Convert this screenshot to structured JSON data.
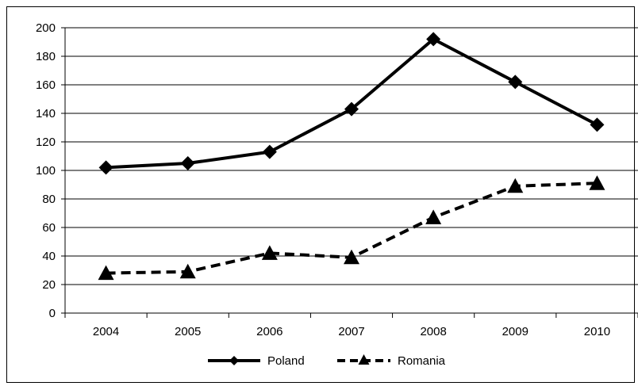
{
  "chart_data": {
    "type": "line",
    "x": [
      "2004",
      "2005",
      "2006",
      "2007",
      "2008",
      "2009",
      "2010"
    ],
    "ylim": [
      0,
      200
    ],
    "yticks": [
      0,
      20,
      40,
      60,
      80,
      100,
      120,
      140,
      160,
      180,
      200
    ],
    "grid": true,
    "legend_position": "bottom",
    "series": [
      {
        "name": "Poland",
        "values": [
          102,
          105,
          113,
          143,
          192,
          162,
          132
        ],
        "marker": "diamond",
        "line": "solid",
        "color": "#000000"
      },
      {
        "name": "Romania",
        "values": [
          28,
          29,
          42,
          39,
          67,
          89,
          91
        ],
        "marker": "triangle",
        "line": "dashed",
        "color": "#000000"
      }
    ]
  }
}
